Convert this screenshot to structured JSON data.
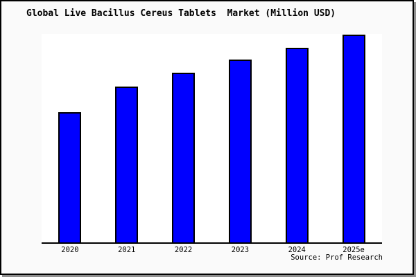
{
  "colors": {
    "bar_fill": "#0000ff",
    "bar_border": "#000000",
    "canvas_background": "#fafafa",
    "plot_background": "#ffffff",
    "axis": "#000000",
    "frame_border": "#000000",
    "frame_shadow": "#8f8f8f",
    "text": "#000000"
  },
  "chart_data": {
    "type": "bar",
    "title": "Global Live Bacillus Cereus Tablets  Market (Million USD)",
    "categories": [
      "2020",
      "2021",
      "2022",
      "2023",
      "2024",
      "2025e"
    ],
    "values": [
      62.5,
      74.9,
      81.4,
      87.7,
      93.4,
      99.7
    ],
    "value_note": "y-axis has no tick labels or gridlines; values are estimated relative bar heights as % of plot height",
    "xlabel": "",
    "ylabel": "",
    "ylim": [
      0,
      100
    ],
    "grid": false,
    "legend": false,
    "y_axis_labeled": false,
    "source_label": "Source: Prof Research"
  }
}
